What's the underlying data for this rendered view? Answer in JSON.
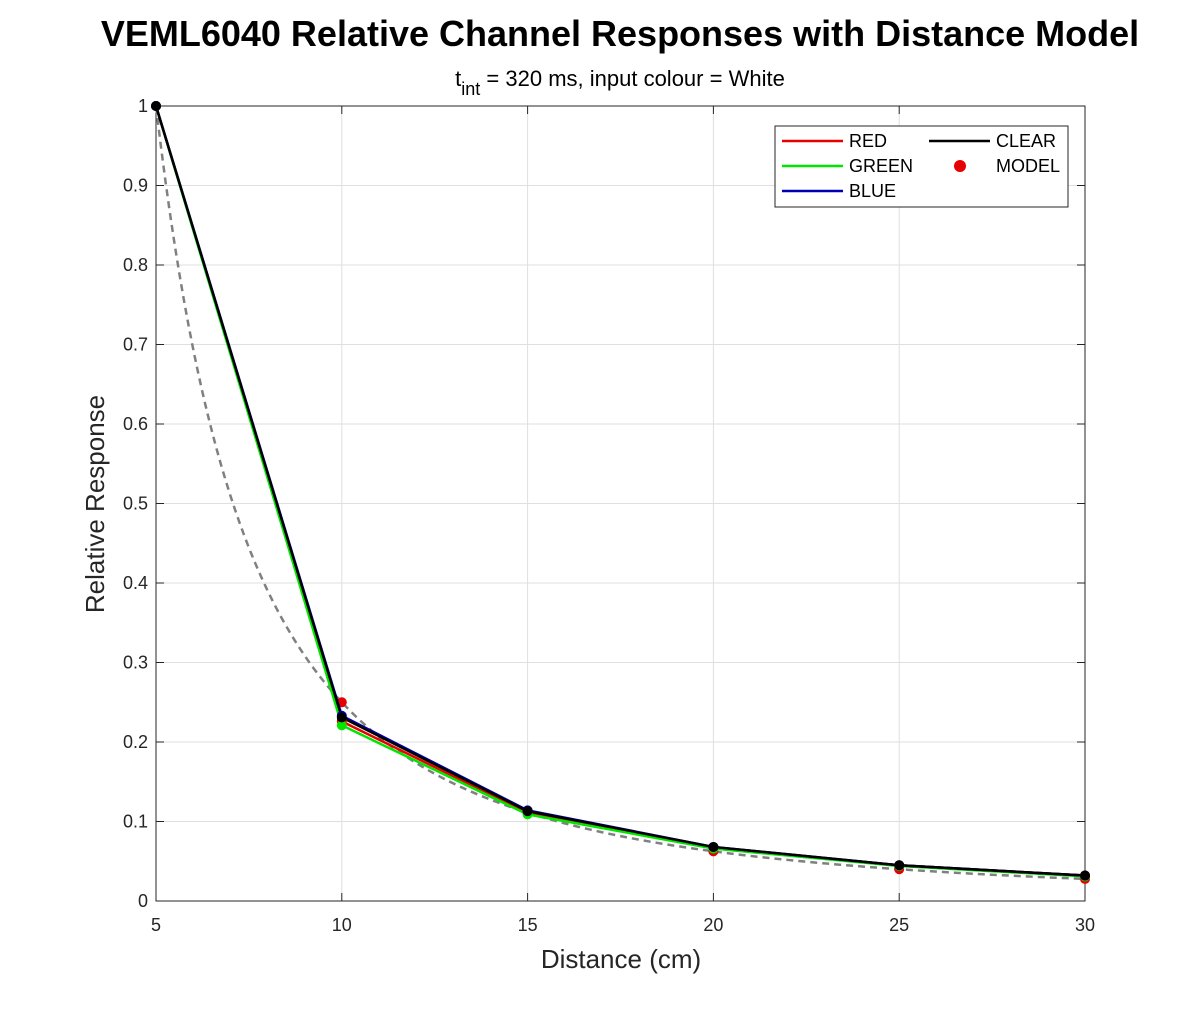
{
  "chart_data": {
    "type": "line",
    "title": "VEML6040 Relative Channel Responses with Distance Model",
    "subtitle": {
      "t_base": "t",
      "t_sub": "int",
      "rest": " = 320 ms, input colour = White"
    },
    "xlabel": "Distance (cm)",
    "ylabel": "Relative Response",
    "xlim": [
      5,
      30
    ],
    "ylim": [
      0,
      1
    ],
    "xticks": [
      5,
      10,
      15,
      20,
      25,
      30
    ],
    "yticks": [
      0,
      0.1,
      0.2,
      0.3,
      0.4,
      0.5,
      0.6,
      0.7,
      0.8,
      0.9,
      1
    ],
    "grid": true,
    "legend_position": "top-right",
    "x": [
      5,
      10,
      15,
      20,
      25,
      30
    ],
    "series": [
      {
        "name": "RED",
        "color": "#e60000",
        "values": [
          1,
          0.226,
          0.111,
          0.067,
          0.045,
          0.032
        ]
      },
      {
        "name": "GREEN",
        "color": "#00e600",
        "values": [
          1,
          0.221,
          0.109,
          0.066,
          0.044,
          0.031
        ]
      },
      {
        "name": "BLUE",
        "color": "#0000b3",
        "values": [
          1,
          0.233,
          0.114,
          0.068,
          0.045,
          0.032
        ]
      },
      {
        "name": "CLEAR",
        "color": "#000000",
        "values": [
          1,
          0.231,
          0.113,
          0.068,
          0.045,
          0.032
        ]
      }
    ],
    "model": {
      "name": "MODEL",
      "color": "#e60000",
      "line_color": "#808080",
      "formula": "(5/x)^2"
    }
  }
}
